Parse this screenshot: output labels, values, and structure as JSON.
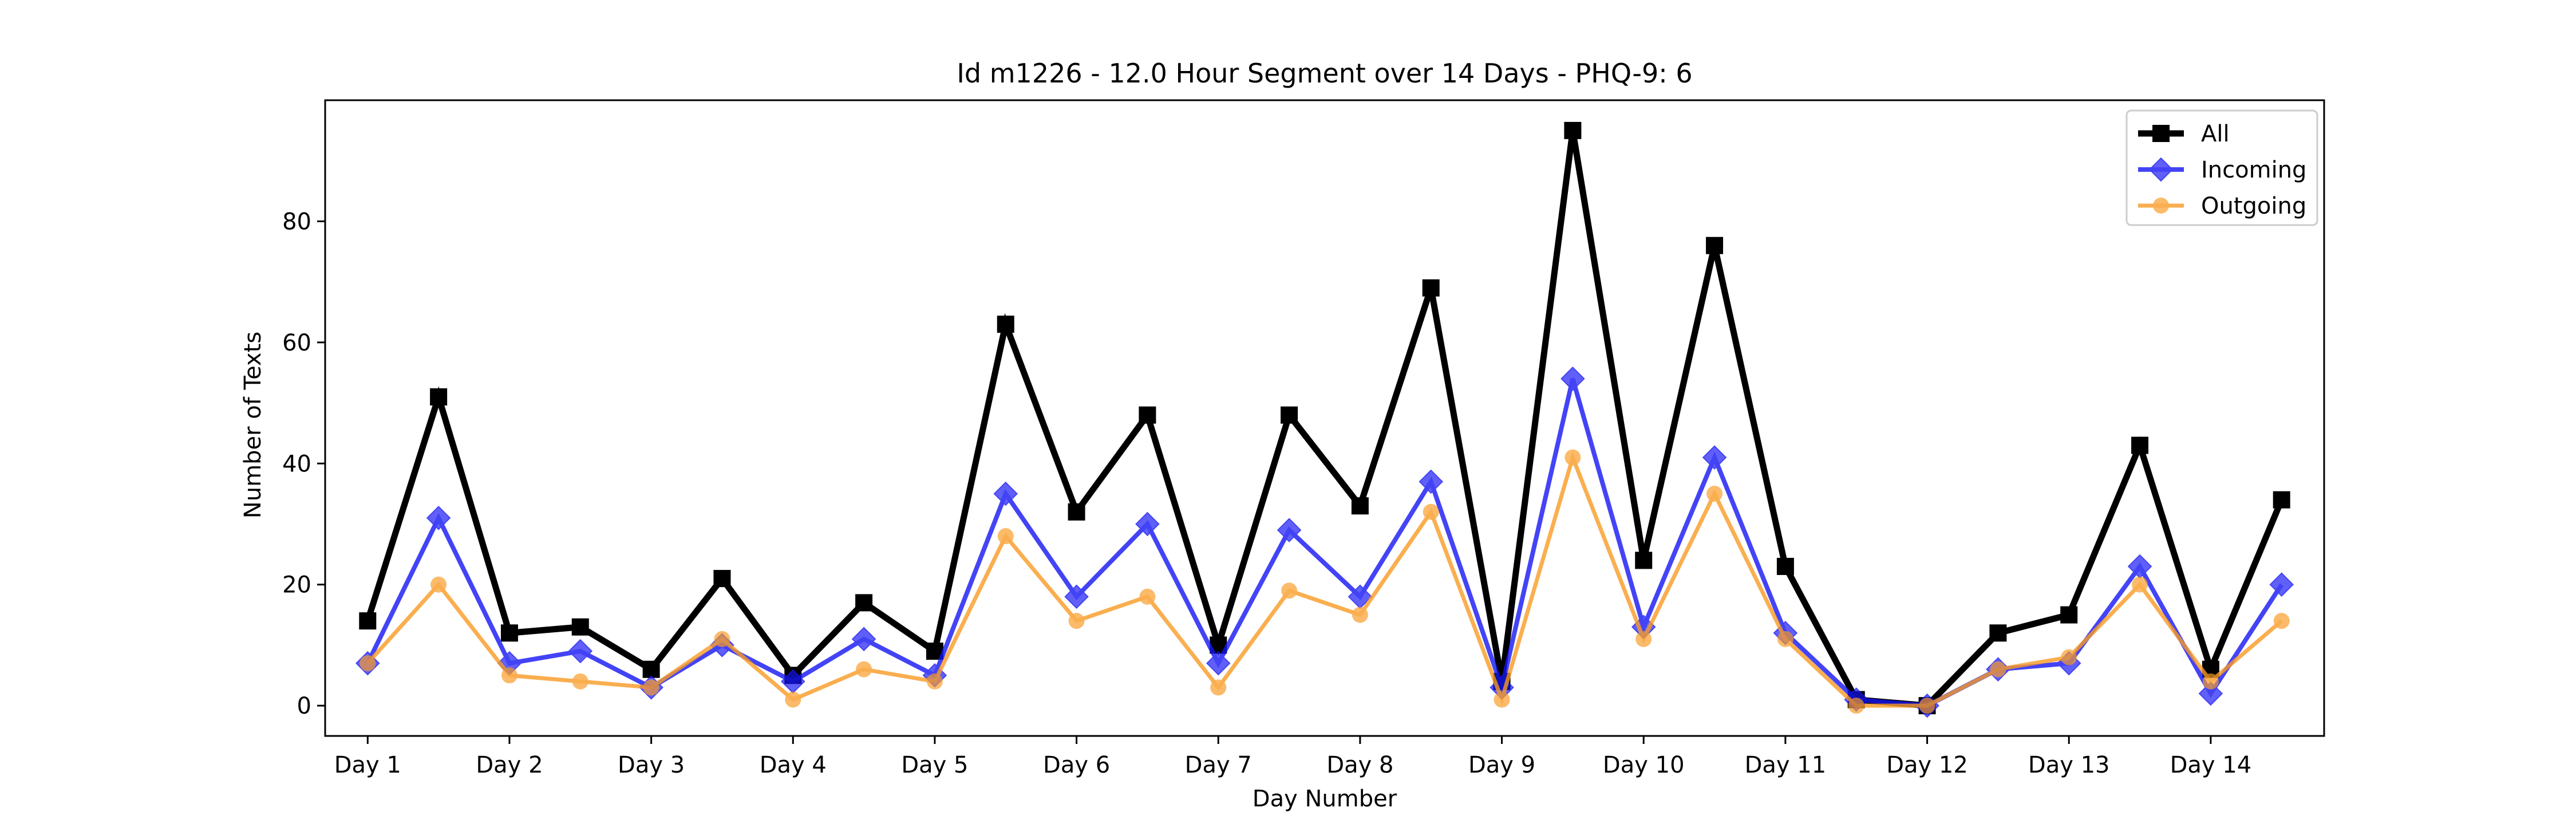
{
  "chart_data": {
    "type": "line",
    "title": "Id m1226 - 12.0 Hour Segment over 14 Days - PHQ-9: 6",
    "xlabel": "Day Number",
    "ylabel": "Number of Texts",
    "ylim": [
      -5,
      100
    ],
    "yticks": [
      0,
      20,
      40,
      60,
      80
    ],
    "xlim": [
      -0.6,
      27.6
    ],
    "categories": [
      "Day 1",
      "Day 2",
      "Day 3",
      "Day 4",
      "Day 5",
      "Day 6",
      "Day 7",
      "Day 8",
      "Day 9",
      "Day 10",
      "Day 11",
      "Day 12",
      "Day 13",
      "Day 14"
    ],
    "category_positions": [
      0,
      2,
      4,
      6,
      8,
      10,
      12,
      14,
      16,
      18,
      20,
      22,
      24,
      26
    ],
    "x": [
      0,
      1,
      2,
      3,
      4,
      5,
      6,
      7,
      8,
      9,
      10,
      11,
      12,
      13,
      14,
      15,
      16,
      17,
      18,
      19,
      20,
      21,
      22,
      23,
      24,
      25,
      26,
      27
    ],
    "grid": false,
    "legend_position": "top-right",
    "series": [
      {
        "name": "All",
        "color": "#000000",
        "marker": "square",
        "values": [
          14,
          51,
          12,
          13,
          6,
          21,
          5,
          17,
          9,
          63,
          32,
          48,
          10,
          48,
          33,
          69,
          4,
          95,
          24,
          76,
          23,
          1,
          0,
          12,
          15,
          43,
          6,
          34
        ]
      },
      {
        "name": "Incoming",
        "color": "#1515f5",
        "marker": "diamond",
        "values": [
          7,
          31,
          7,
          9,
          3,
          10,
          4,
          11,
          5,
          35,
          18,
          30,
          7,
          29,
          18,
          37,
          3,
          54,
          13,
          41,
          12,
          1,
          0,
          6,
          7,
          23,
          2,
          20
        ]
      },
      {
        "name": "Outgoing",
        "color": "#f99b24",
        "marker": "circle",
        "values": [
          7,
          20,
          5,
          4,
          3,
          11,
          1,
          6,
          4,
          28,
          14,
          18,
          3,
          19,
          15,
          32,
          1,
          41,
          11,
          35,
          11,
          0,
          0,
          6,
          8,
          20,
          4,
          14
        ]
      }
    ]
  }
}
